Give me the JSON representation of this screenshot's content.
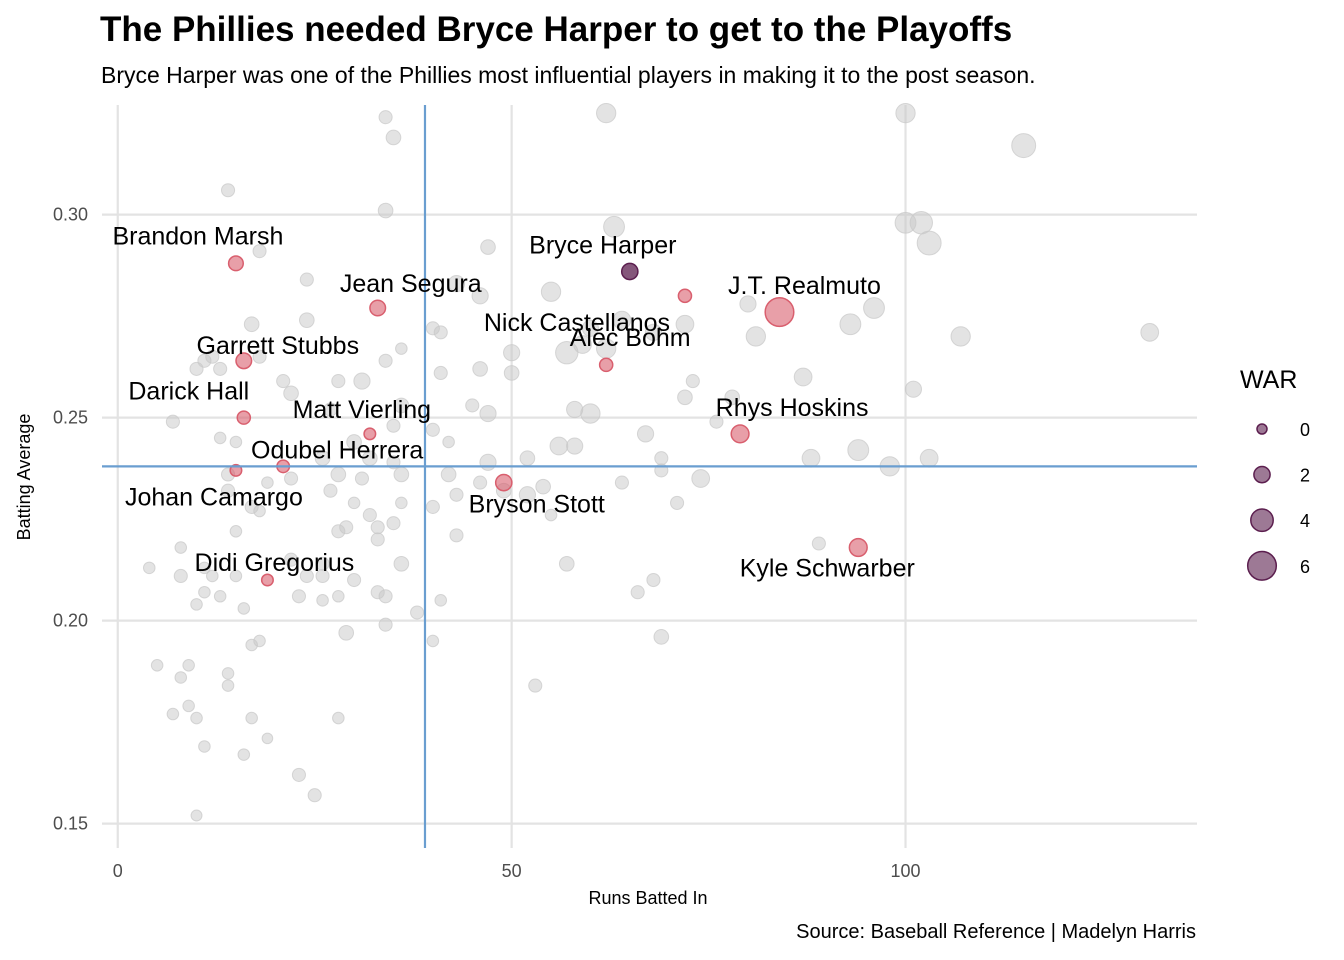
{
  "title": "The Phillies needed Bryce Harper to get to the Playoffs",
  "subtitle": "Bryce Harper was one of the Phillies most influential players in making it to the post season.",
  "caption": "Source: Baseball Reference | Madelyn Harris",
  "colors": {
    "background_point": "#c8c8c8",
    "phillies_point": "#d95f6e",
    "harper_point": "#5c1f4f",
    "reference_line": "#6a9ed0",
    "grid": "#e3e3e3"
  },
  "chart_data": {
    "type": "scatter",
    "xlabel": "Runs Batted In",
    "ylabel": "Batting Average",
    "xlim": [
      -2,
      137
    ],
    "ylim": [
      0.144,
      0.327
    ],
    "x_ticks": [
      0,
      50,
      100
    ],
    "x_tick_labels": [
      "0",
      "50",
      "100"
    ],
    "y_ticks": [
      0.15,
      0.2,
      0.25,
      0.3
    ],
    "y_tick_labels": [
      "0.15",
      "0.20",
      "0.25",
      "0.30"
    ],
    "grid": true,
    "reference_lines": {
      "x": 39,
      "y": 0.238
    },
    "legend": {
      "title": "WAR",
      "position": "right",
      "entries": [
        {
          "label": "0",
          "war": 0
        },
        {
          "label": "2",
          "war": 2
        },
        {
          "label": "4",
          "war": 4
        },
        {
          "label": "6",
          "war": 6
        }
      ]
    },
    "highlighted_players": [
      {
        "name": "Bryce Harper",
        "rbi": 65,
        "avg": 0.286,
        "war": 2.0,
        "group": "harper"
      },
      {
        "name": "Brandon Marsh",
        "rbi": 15,
        "avg": 0.288,
        "war": 1.5,
        "group": "phillies"
      },
      {
        "name": "Jean Segura",
        "rbi": 33,
        "avg": 0.277,
        "war": 1.8,
        "group": "phillies"
      },
      {
        "name": "Alec Bohm",
        "rbi": 62,
        "avg": 0.263,
        "war": 1.0,
        "group": "phillies"
      },
      {
        "name": "Garrett Stubbs",
        "rbi": 16,
        "avg": 0.264,
        "war": 1.8,
        "group": "phillies"
      },
      {
        "name": "J.T. Realmuto",
        "rbi": 84,
        "avg": 0.276,
        "war": 6.0,
        "group": "phillies"
      },
      {
        "name": "Darick Hall",
        "rbi": 16,
        "avg": 0.25,
        "war": 1.0,
        "group": "phillies"
      },
      {
        "name": "Nick Castellanos",
        "rbi": 72,
        "avg": 0.28,
        "war": 1.0,
        "group": "phillies"
      },
      {
        "name": "Matt Vierling",
        "rbi": 32,
        "avg": 0.246,
        "war": 0.5,
        "group": "phillies"
      },
      {
        "name": "Rhys Hoskins",
        "rbi": 79,
        "avg": 0.246,
        "war": 2.5,
        "group": "phillies"
      },
      {
        "name": "Odubel Herrera",
        "rbi": 21,
        "avg": 0.238,
        "war": 0.8,
        "group": "phillies"
      },
      {
        "name": "Johan Camargo",
        "rbi": 15,
        "avg": 0.237,
        "war": 0.5,
        "group": "phillies"
      },
      {
        "name": "Bryson Stott",
        "rbi": 49,
        "avg": 0.234,
        "war": 2.0,
        "group": "phillies"
      },
      {
        "name": "Didi Gregorius",
        "rbi": 19,
        "avg": 0.21,
        "war": 0.5,
        "group": "phillies"
      },
      {
        "name": "Kyle Schwarber",
        "rbi": 94,
        "avg": 0.218,
        "war": 2.5,
        "group": "phillies"
      }
    ],
    "other_players": [
      [
        34,
        0.324,
        1
      ],
      [
        35,
        0.319,
        1.5
      ],
      [
        62,
        0.325,
        3
      ],
      [
        100,
        0.325,
        3
      ],
      [
        115,
        0.317,
        4.5
      ],
      [
        14,
        0.306,
        1
      ],
      [
        34,
        0.301,
        1.5
      ],
      [
        63,
        0.297,
        3.5
      ],
      [
        100,
        0.298,
        3.5
      ],
      [
        102,
        0.298,
        4
      ],
      [
        103,
        0.293,
        4.5
      ],
      [
        18,
        0.291,
        1
      ],
      [
        47,
        0.292,
        1.5
      ],
      [
        24,
        0.284,
        1
      ],
      [
        43,
        0.283,
        2
      ],
      [
        55,
        0.281,
        3
      ],
      [
        80,
        0.278,
        2
      ],
      [
        96,
        0.277,
        3.5
      ],
      [
        17,
        0.273,
        1.5
      ],
      [
        24,
        0.274,
        1.5
      ],
      [
        40,
        0.272,
        1
      ],
      [
        41,
        0.271,
        1
      ],
      [
        46,
        0.28,
        2
      ],
      [
        60,
        0.272,
        2
      ],
      [
        64,
        0.274,
        2.5
      ],
      [
        72,
        0.273,
        2.5
      ],
      [
        93,
        0.273,
        3.5
      ],
      [
        107,
        0.27,
        3
      ],
      [
        131,
        0.271,
        2.5
      ],
      [
        57,
        0.266,
        4
      ],
      [
        59,
        0.268,
        2.5
      ],
      [
        62,
        0.267,
        3
      ],
      [
        68,
        0.271,
        2
      ],
      [
        81,
        0.27,
        3
      ],
      [
        50,
        0.266,
        2
      ],
      [
        36,
        0.267,
        0.5
      ],
      [
        34,
        0.264,
        1
      ],
      [
        10,
        0.262,
        1
      ],
      [
        11,
        0.264,
        1
      ],
      [
        12,
        0.265,
        1
      ],
      [
        13,
        0.262,
        1
      ],
      [
        18,
        0.265,
        1
      ],
      [
        21,
        0.259,
        1
      ],
      [
        28,
        0.259,
        1
      ],
      [
        31,
        0.259,
        2
      ],
      [
        41,
        0.261,
        1
      ],
      [
        46,
        0.262,
        1.5
      ],
      [
        50,
        0.261,
        1.5
      ],
      [
        73,
        0.259,
        1
      ],
      [
        87,
        0.26,
        2.5
      ],
      [
        101,
        0.257,
        2
      ],
      [
        78,
        0.255,
        1.5
      ],
      [
        72,
        0.255,
        1.5
      ],
      [
        22,
        0.256,
        1.5
      ],
      [
        27,
        0.252,
        1
      ],
      [
        36,
        0.253,
        1.5
      ],
      [
        45,
        0.253,
        1
      ],
      [
        47,
        0.251,
        2
      ],
      [
        58,
        0.252,
        2
      ],
      [
        60,
        0.251,
        3
      ],
      [
        7,
        0.249,
        1
      ],
      [
        13,
        0.245,
        0.5
      ],
      [
        15,
        0.244,
        0.5
      ],
      [
        30,
        0.244,
        1.5
      ],
      [
        35,
        0.248,
        1
      ],
      [
        40,
        0.247,
        1
      ],
      [
        42,
        0.244,
        0.5
      ],
      [
        56,
        0.243,
        2.5
      ],
      [
        58,
        0.243,
        2
      ],
      [
        67,
        0.246,
        2
      ],
      [
        76,
        0.249,
        1
      ],
      [
        26,
        0.24,
        1.5
      ],
      [
        32,
        0.24,
        1.5
      ],
      [
        35,
        0.239,
        1
      ],
      [
        47,
        0.239,
        2
      ],
      [
        52,
        0.24,
        1.5
      ],
      [
        69,
        0.24,
        1
      ],
      [
        88,
        0.24,
        2.5
      ],
      [
        94,
        0.242,
        3.5
      ],
      [
        98,
        0.238,
        3
      ],
      [
        103,
        0.24,
        2.5
      ],
      [
        14,
        0.236,
        1
      ],
      [
        19,
        0.234,
        0.5
      ],
      [
        22,
        0.235,
        1
      ],
      [
        28,
        0.236,
        1.5
      ],
      [
        31,
        0.235,
        1
      ],
      [
        36,
        0.236,
        1.5
      ],
      [
        42,
        0.236,
        1.5
      ],
      [
        46,
        0.234,
        1
      ],
      [
        49,
        0.232,
        1.5
      ],
      [
        52,
        0.231,
        2
      ],
      [
        54,
        0.233,
        1.5
      ],
      [
        69,
        0.237,
        1
      ],
      [
        74,
        0.235,
        2.5
      ],
      [
        64,
        0.234,
        1
      ],
      [
        14,
        0.232,
        1
      ],
      [
        17,
        0.228,
        1
      ],
      [
        18,
        0.227,
        0.5
      ],
      [
        27,
        0.232,
        1
      ],
      [
        30,
        0.229,
        0.5
      ],
      [
        32,
        0.226,
        1
      ],
      [
        33,
        0.223,
        1
      ],
      [
        36,
        0.229,
        0.5
      ],
      [
        40,
        0.228,
        1
      ],
      [
        43,
        0.231,
        1
      ],
      [
        55,
        0.226,
        0.5
      ],
      [
        71,
        0.229,
        1
      ],
      [
        15,
        0.222,
        0.5
      ],
      [
        28,
        0.222,
        1
      ],
      [
        29,
        0.223,
        1
      ],
      [
        33,
        0.22,
        1
      ],
      [
        35,
        0.224,
        1
      ],
      [
        43,
        0.221,
        1
      ],
      [
        8,
        0.218,
        0.5
      ],
      [
        11,
        0.213,
        0.5
      ],
      [
        22,
        0.215,
        1
      ],
      [
        26,
        0.214,
        1
      ],
      [
        36,
        0.214,
        1.5
      ],
      [
        57,
        0.214,
        1.5
      ],
      [
        89,
        0.219,
        1
      ],
      [
        4,
        0.213,
        0.5
      ],
      [
        8,
        0.211,
        1
      ],
      [
        11,
        0.207,
        0.5
      ],
      [
        12,
        0.211,
        0.5
      ],
      [
        15,
        0.211,
        0.5
      ],
      [
        24,
        0.211,
        1
      ],
      [
        26,
        0.211,
        1
      ],
      [
        30,
        0.21,
        1
      ],
      [
        33,
        0.207,
        1
      ],
      [
        34,
        0.206,
        1
      ],
      [
        38,
        0.202,
        1
      ],
      [
        41,
        0.205,
        0.5
      ],
      [
        66,
        0.207,
        1
      ],
      [
        68,
        0.21,
        1
      ],
      [
        10,
        0.204,
        0.5
      ],
      [
        13,
        0.206,
        0.5
      ],
      [
        16,
        0.203,
        0.5
      ],
      [
        23,
        0.206,
        1
      ],
      [
        26,
        0.205,
        0.5
      ],
      [
        28,
        0.206,
        0.5
      ],
      [
        29,
        0.197,
        1.5
      ],
      [
        34,
        0.199,
        1
      ],
      [
        40,
        0.195,
        0.5
      ],
      [
        69,
        0.196,
        1.5
      ],
      [
        17,
        0.194,
        0.5
      ],
      [
        18,
        0.195,
        0.5
      ],
      [
        5,
        0.189,
        0.5
      ],
      [
        9,
        0.189,
        0.5
      ],
      [
        14,
        0.187,
        0.5
      ],
      [
        8,
        0.186,
        0.5
      ],
      [
        14,
        0.184,
        0.5
      ],
      [
        53,
        0.184,
        1
      ],
      [
        9,
        0.179,
        0.5
      ],
      [
        7,
        0.177,
        0.5
      ],
      [
        10,
        0.176,
        0.5
      ],
      [
        17,
        0.176,
        0.5
      ],
      [
        28,
        0.176,
        0.5
      ],
      [
        11,
        0.169,
        0.5
      ],
      [
        16,
        0.167,
        0.5
      ],
      [
        19,
        0.171,
        0.2
      ],
      [
        23,
        0.162,
        1
      ],
      [
        25,
        0.157,
        1
      ],
      [
        10,
        0.152,
        0.3
      ]
    ]
  }
}
